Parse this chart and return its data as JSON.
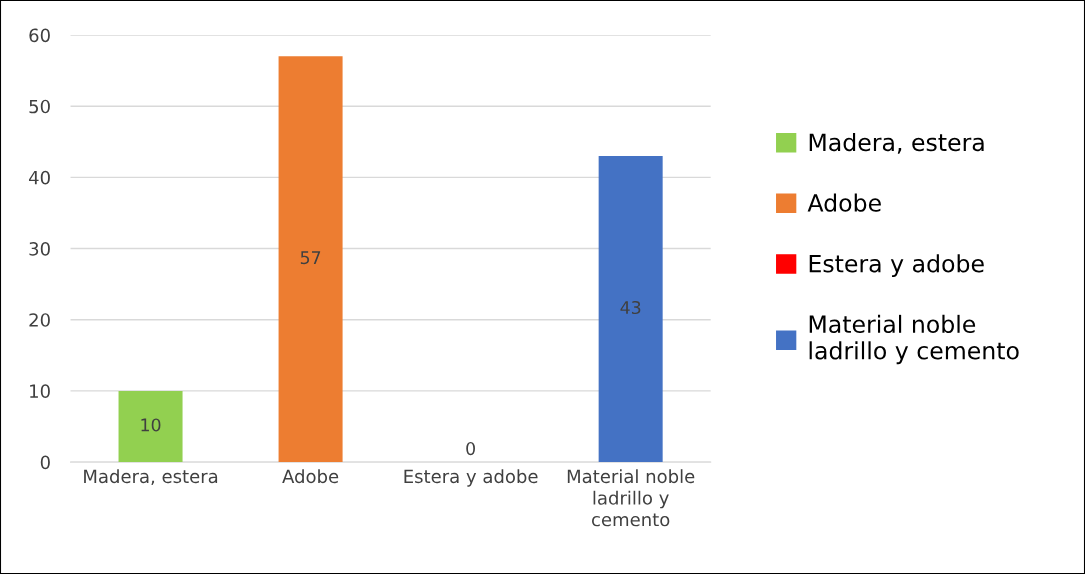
{
  "chart_data": {
    "type": "bar",
    "categories": [
      "Madera, estera",
      "Adobe",
      "Estera y adobe",
      "Material noble ladrillo y cemento"
    ],
    "series": [
      {
        "name": "Madera, estera",
        "color": "#92d050",
        "values": [
          10,
          null,
          null,
          null
        ]
      },
      {
        "name": "Adobe",
        "color": "#ed7d31",
        "values": [
          null,
          57,
          null,
          null
        ]
      },
      {
        "name": "Estera y adobe",
        "color": "#ff0000",
        "values": [
          null,
          null,
          0,
          null
        ]
      },
      {
        "name": "Material noble ladrillo y cemento",
        "color": "#4472c4",
        "values": [
          null,
          null,
          null,
          43
        ]
      }
    ],
    "ylim": [
      0,
      60
    ],
    "yticks": [
      0,
      10,
      20,
      30,
      40,
      50,
      60
    ],
    "grid": "y",
    "legend": "right",
    "data_labels": true
  }
}
